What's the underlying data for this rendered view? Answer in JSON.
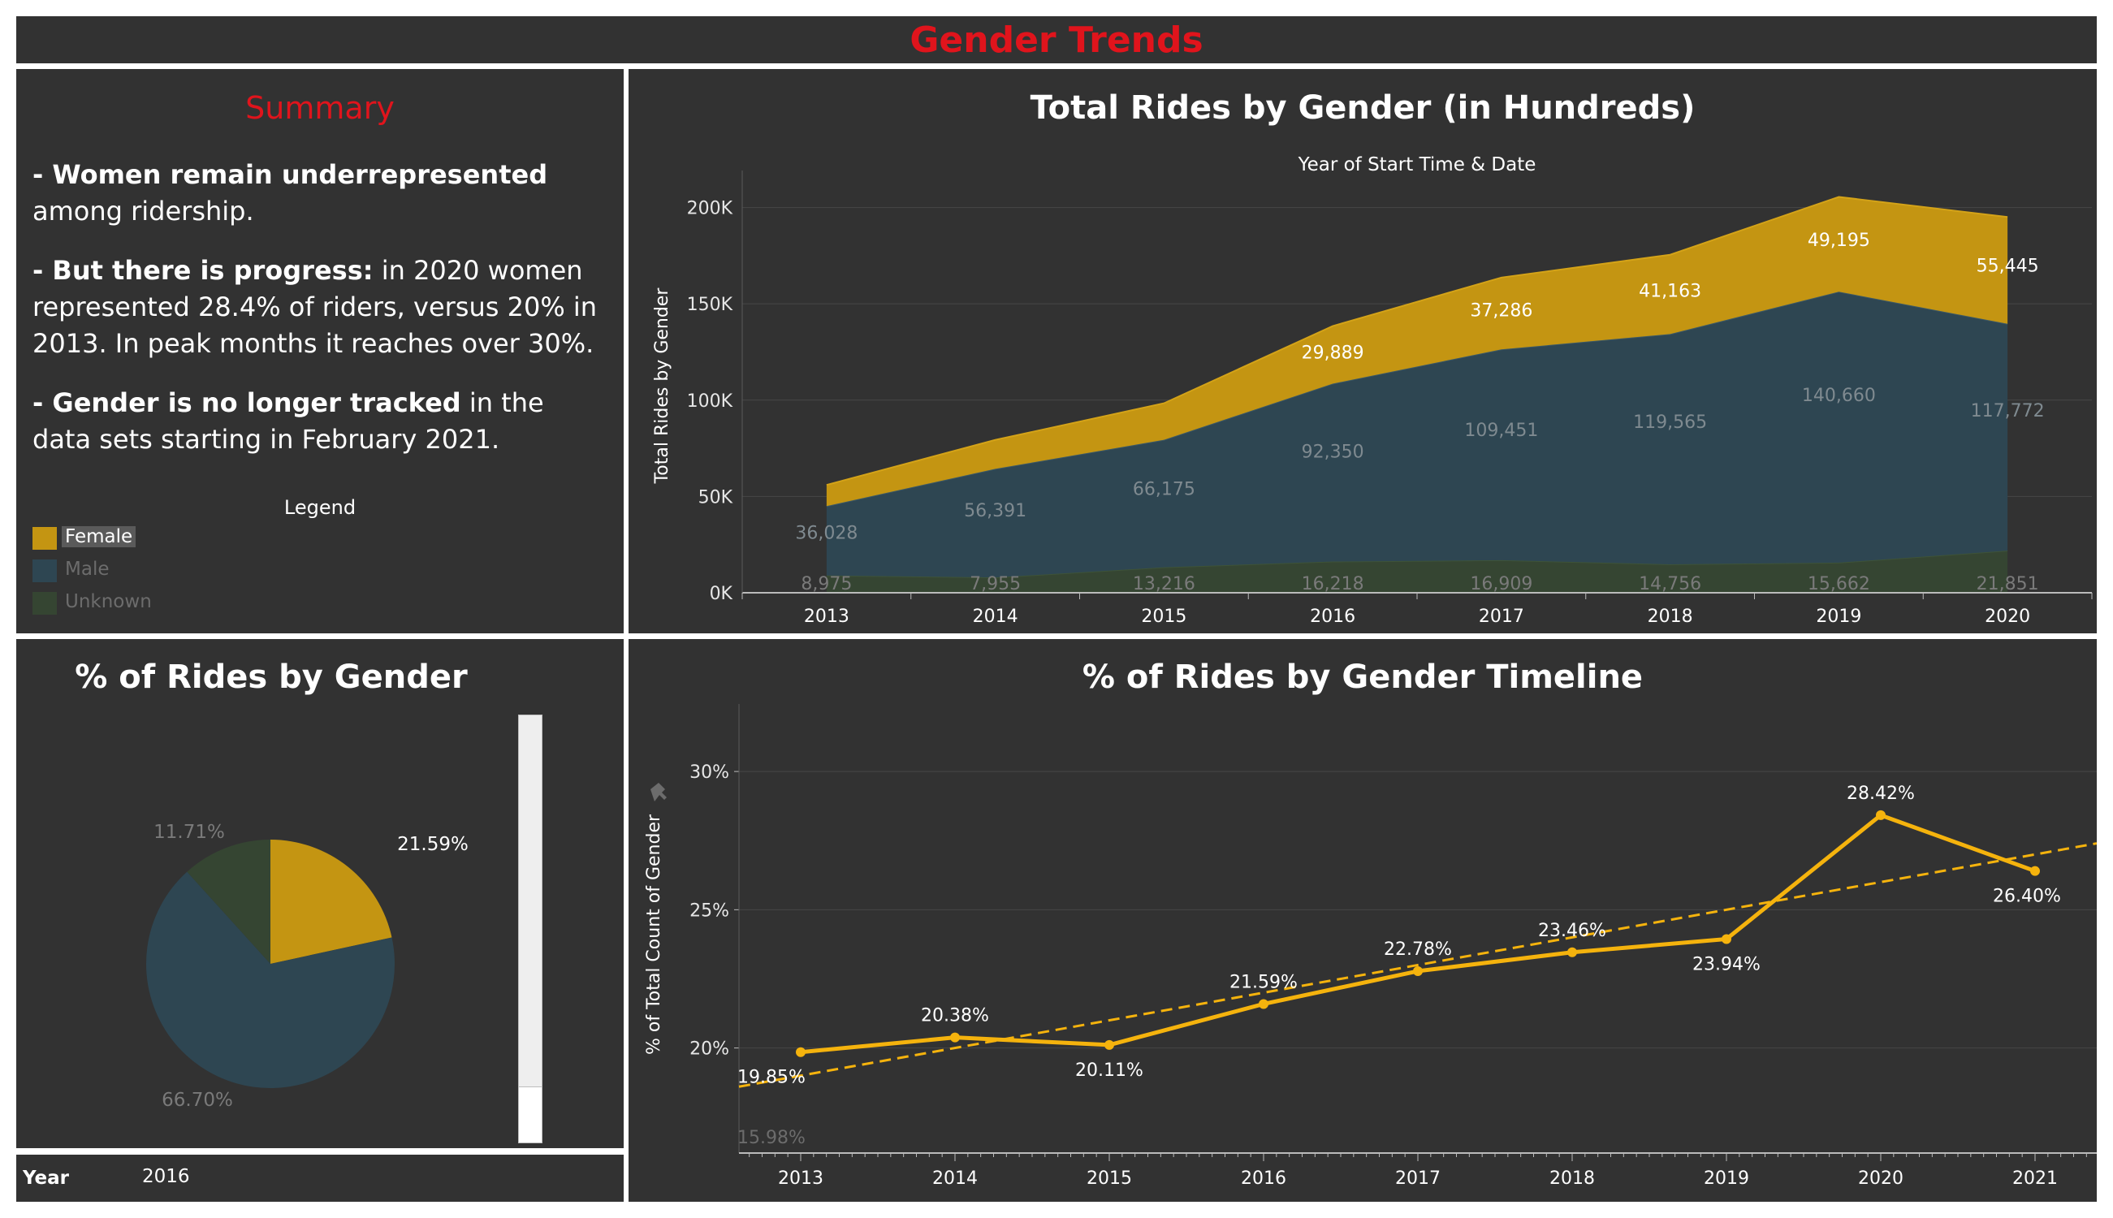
{
  "dashboard": {
    "title": "Gender Trends"
  },
  "summary": {
    "title": "Summary",
    "p1_bold": "- Women remain underrepresented",
    "p1_rest": " among ridership.",
    "p2_bold": "- But there is progress:",
    "p2_rest": " in 2020 women represented 28.4% of riders, versus 20% in 2013.  In peak months it reaches over 30%.",
    "p3_bold": "- Gender is no longer tracked",
    "p3_rest": " in the data sets starting in February 2021."
  },
  "legend": {
    "title": "Legend",
    "items": [
      {
        "label": "Female",
        "color": "#c49512",
        "selected": true
      },
      {
        "label": "Male",
        "color": "#2e4652",
        "selected": false
      },
      {
        "label": "Unknown",
        "color": "#354532",
        "selected": false
      }
    ]
  },
  "colors": {
    "female": "#c49512",
    "male": "#2e4652",
    "unknown": "#354532",
    "line": "#f5b30d",
    "title_red": "#e0141c"
  },
  "year_filter": {
    "label": "Year",
    "value": "2016"
  },
  "chart_data": [
    {
      "type": "area",
      "title": "Total Rides by Gender (in Hundreds)",
      "subtitle": "Year of Start Time & Date",
      "ylabel": "Total Rides by Gender",
      "ylim": [
        0,
        215000
      ],
      "yticks": [
        0,
        50000,
        100000,
        150000,
        200000
      ],
      "yticklabels": [
        "0K",
        "50K",
        "100K",
        "150K",
        "200K"
      ],
      "categories": [
        "2013",
        "2014",
        "2015",
        "2016",
        "2017",
        "2018",
        "2019",
        "2020"
      ],
      "stacked": true,
      "series": [
        {
          "name": "Unknown",
          "values": [
            8975,
            7955,
            13216,
            16218,
            16909,
            14756,
            15662,
            21851
          ],
          "labels": [
            "8,975",
            "7,955",
            "13,216",
            "16,218",
            "16,909",
            "14,756",
            "15,662",
            "21,851"
          ]
        },
        {
          "name": "Male",
          "values": [
            36028,
            56391,
            66175,
            92350,
            109451,
            119565,
            140660,
            117772
          ],
          "labels": [
            "36,028",
            "56,391",
            "66,175",
            "92,350",
            "109,451",
            "119,565",
            "140,660",
            "117,772"
          ]
        },
        {
          "name": "Female",
          "values": [
            11000,
            15000,
            19000,
            29889,
            37286,
            41163,
            49195,
            55445
          ],
          "labels": [
            "",
            "",
            "",
            "29,889",
            "37,286",
            "41,163",
            "49,195",
            "55,445"
          ]
        }
      ],
      "grid": true
    },
    {
      "type": "pie",
      "title": "% of Rides by Gender",
      "slices": [
        {
          "name": "Female",
          "value": 21.59,
          "label": "21.59%"
        },
        {
          "name": "Male",
          "value": 66.7,
          "label": "66.70%"
        },
        {
          "name": "Unknown",
          "value": 11.71,
          "label": "11.71%"
        }
      ]
    },
    {
      "type": "line",
      "title": "% of Rides by Gender Timeline",
      "ylabel": "% of Total Count of Gender",
      "ylim": [
        16.2,
        32
      ],
      "xlim": [
        2012.6,
        2021.4
      ],
      "yticks": [
        20,
        25,
        30
      ],
      "yticklabels": [
        "20%",
        "25%",
        "30%"
      ],
      "x": [
        2013,
        2014,
        2015,
        2016,
        2017,
        2018,
        2019,
        2020,
        2021
      ],
      "xticklabels": [
        "2013",
        "2014",
        "2015",
        "2016",
        "2017",
        "2018",
        "2019",
        "2020",
        "2021"
      ],
      "values": [
        19.85,
        20.38,
        20.11,
        21.59,
        22.78,
        23.46,
        23.94,
        28.42,
        26.4
      ],
      "labels": [
        "19.85%",
        "20.38%",
        "20.11%",
        "21.59%",
        "22.78%",
        "23.46%",
        "23.94%",
        "28.42%",
        "26.40%"
      ],
      "trend_line": {
        "y_at_2012_6": 18.6,
        "y_at_2021_4": 27.4,
        "style": "dashed"
      },
      "extra_label": "15.98%",
      "grid": true
    }
  ]
}
